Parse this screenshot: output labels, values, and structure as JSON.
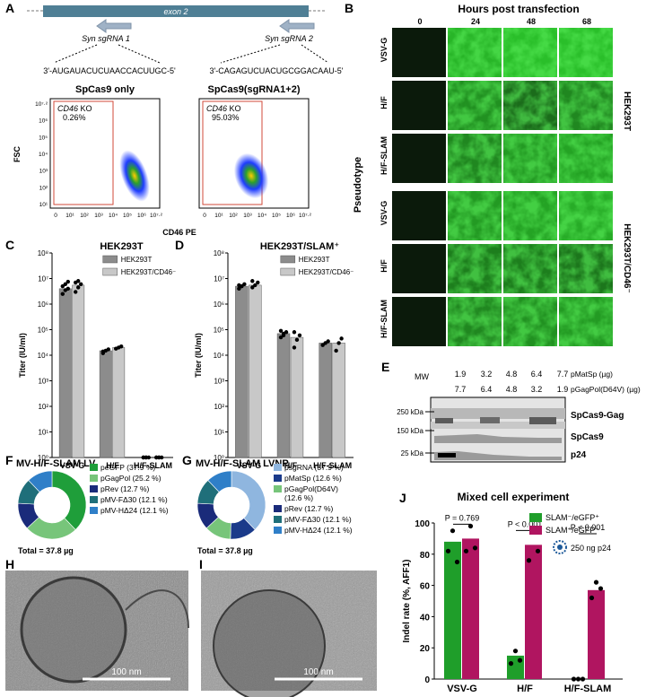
{
  "panels": {
    "A": "A",
    "B": "B",
    "C": "C",
    "D": "D",
    "E": "E",
    "F": "F",
    "G": "G",
    "H": "H",
    "I": "I",
    "J": "J"
  },
  "panelA": {
    "exon_label": "exon 2",
    "sg1_label": "Syn sgRNA 1",
    "sg2_label": "Syn sgRNA 2",
    "seq1": "3'-AUGAUACUCUAACCACUUGC-5'",
    "seq2": "3'-CAGAGUCUACUGCGGACAAU-5'",
    "plot1_title": "SpCas9 only",
    "plot2_title": "SpCas9(sgRNA1+2)",
    "ko_label": "KO",
    "gene": "CD46",
    "ko1_pct": "0.26%",
    "ko2_pct": "95.03%",
    "ylabel": "FSC",
    "xlabel": "CD46 PE",
    "x_ticks": [
      "0",
      "10¹",
      "10²",
      "10³",
      "10⁴",
      "10⁵",
      "10⁶",
      "10⁷·²"
    ],
    "y_ticks": [
      "10¹",
      "10²",
      "10³",
      "10⁴",
      "10⁵",
      "10⁶",
      "10⁷·²"
    ]
  },
  "panelB": {
    "title": "Hours post transfection",
    "columns": [
      "0",
      "24",
      "48",
      "68"
    ],
    "rows": [
      "VSV-G",
      "H/F",
      "H/F-SLAM",
      "VSV-G",
      "H/F",
      "H/F-SLAM"
    ],
    "ylabel": "Pseudotype",
    "group1": "HEK293T",
    "group2": "HEK293T/CD46⁻",
    "fluor_levels": [
      [
        0,
        0.85,
        0.9,
        0.9
      ],
      [
        0,
        0.65,
        0.45,
        0.6
      ],
      [
        0,
        0.6,
        0.7,
        0.75
      ],
      [
        0,
        0.7,
        0.75,
        0.8
      ],
      [
        0,
        0.55,
        0.55,
        0.5
      ],
      [
        0,
        0.6,
        0.65,
        0.7
      ]
    ]
  },
  "chart_data": [
    {
      "type": "bar",
      "title": "HEK293T",
      "ylabel": "Titer (IU/ml)",
      "y_scale": "log",
      "ylim": [
        1,
        100000000
      ],
      "y_ticks": [
        "10⁰",
        "10¹",
        "10²",
        "10³",
        "10⁴",
        "10⁵",
        "10⁶",
        "10⁷",
        "10⁸"
      ],
      "categories": [
        "VSV-G",
        "H/F",
        "H/F-SLAM"
      ],
      "series": [
        {
          "name": "HEK293T",
          "color": "#8c8c8c",
          "values": [
            4000000,
            15000,
            1
          ]
        },
        {
          "name": "HEK293T/CD46⁻",
          "color": "#c8c8c8",
          "values": [
            5500000,
            20000,
            1
          ]
        }
      ],
      "points": [
        [
          [
            2500000,
            3500000,
            4000000,
            5000000,
            6000000,
            7500000
          ],
          [
            12000,
            15000,
            17000,
            14000
          ],
          [
            1,
            1,
            1,
            1,
            1
          ]
        ],
        [
          [
            3000000,
            4500000,
            6000000,
            7000000,
            8000000
          ],
          [
            18000,
            20000,
            22000
          ],
          [
            1,
            1,
            1,
            1,
            1
          ]
        ]
      ]
    },
    {
      "type": "bar",
      "title": "HEK293T/SLAM⁺",
      "ylabel": "Titer (IU/ml)",
      "y_scale": "log",
      "ylim": [
        1,
        100000000
      ],
      "y_ticks": [
        "10⁰",
        "10¹",
        "10²",
        "10³",
        "10⁴",
        "10⁵",
        "10⁶",
        "10⁷",
        "10⁸"
      ],
      "categories": [
        "VSV-G",
        "H/F",
        "H/F-SLAM"
      ],
      "series": [
        {
          "name": "HEK293T",
          "color": "#8c8c8c",
          "values": [
            5000000,
            70000,
            30000
          ]
        },
        {
          "name": "HEK293T/CD46⁻",
          "color": "#c8c8c8",
          "values": [
            5500000,
            50000,
            30000
          ]
        }
      ],
      "points": [
        [
          [
            4000000,
            5000000,
            6000000,
            5500000,
            5000000
          ],
          [
            50000,
            60000,
            80000,
            90000,
            70000
          ],
          [
            25000,
            30000,
            35000
          ]
        ],
        [
          [
            4500000,
            5500000,
            7000000,
            8000000
          ],
          [
            20000,
            40000,
            60000,
            80000
          ],
          [
            15000,
            30000,
            45000
          ]
        ]
      ]
    },
    {
      "type": "pie",
      "title": "MV-H/F-SLAM LV",
      "total": "Total = 37.8 µg",
      "slices": [
        {
          "label": "peGFP (37.9 %)",
          "value": 37.9,
          "color": "#1f9e3a"
        },
        {
          "label": "pGagPol (25.2 %)",
          "value": 25.2,
          "color": "#77c57a"
        },
        {
          "label": "pRev (12.7 %)",
          "value": 12.7,
          "color": "#1a2b7a"
        },
        {
          "label": "pMV-FΔ30 (12.1 %)",
          "value": 12.1,
          "color": "#1f6f7a"
        },
        {
          "label": "pMV-HΔ24 (12.1 %)",
          "value": 12.1,
          "color": "#2f7fc8"
        }
      ]
    },
    {
      "type": "pie",
      "title": "MV-H/F-SLAM LVNP",
      "total": "Total = 37.8 µg",
      "slices": [
        {
          "label": "psgRNA (37.9 %)",
          "value": 37.9,
          "color": "#8fb6df"
        },
        {
          "label": "pMatSp (12.6 %)",
          "value": 12.6,
          "color": "#1a3a8a"
        },
        {
          "label": "pGagPol(D64V) (12.6 %)",
          "value": 12.6,
          "color": "#77c57a"
        },
        {
          "label": "pRev (12.7 %)",
          "value": 12.7,
          "color": "#1a2b7a"
        },
        {
          "label": "pMV-FΔ30 (12.1 %)",
          "value": 12.1,
          "color": "#1f6f7a"
        },
        {
          "label": "pMV-HΔ24 (12.1 %)",
          "value": 12.1,
          "color": "#2f7fc8"
        }
      ]
    },
    {
      "type": "bar",
      "title": "Mixed cell experiment",
      "ylabel": "Indel rate (%, AFF1)",
      "ylim": [
        0,
        100
      ],
      "y_ticks": [
        "0",
        "20",
        "40",
        "60",
        "80",
        "100"
      ],
      "categories": [
        "VSV-G",
        "H/F",
        "H/F-SLAM"
      ],
      "series": [
        {
          "name": "SLAM⁻/eGFP⁺",
          "color": "#1f9e2a",
          "values": [
            88,
            15,
            0
          ]
        },
        {
          "name": "SLAM⁺/eGFP⁻",
          "color": "#b01560",
          "values": [
            90,
            86,
            57
          ]
        }
      ],
      "points": [
        [
          [
            82,
            95,
            75
          ],
          [
            10,
            18,
            12
          ],
          [
            0,
            0,
            0
          ]
        ],
        [
          [
            82,
            98,
            84
          ],
          [
            76,
            96,
            82
          ],
          [
            52,
            62,
            58
          ]
        ]
      ],
      "pvalues": [
        "P = 0.769",
        "P < 0.001",
        "P < 0.001"
      ],
      "annotation": "250 ng p24"
    }
  ],
  "panelE": {
    "mw": "MW",
    "row1_vals": [
      "1.9",
      "3.2",
      "4.8",
      "6.4",
      "7.7"
    ],
    "row1_label": "pMatSp (µg)",
    "row2_vals": [
      "7.7",
      "6.4",
      "4.8",
      "3.2",
      "1.9"
    ],
    "row2_label": "pGagPol(D64V) (µg)",
    "markers": [
      "250 kDa",
      "150 kDa",
      "25 kDa"
    ],
    "band_labels": [
      "SpCas9-Gag",
      "SpCas9",
      "p24"
    ]
  },
  "panelH": {
    "scale": "100 nm"
  },
  "panelI": {
    "scale": "100 nm"
  }
}
